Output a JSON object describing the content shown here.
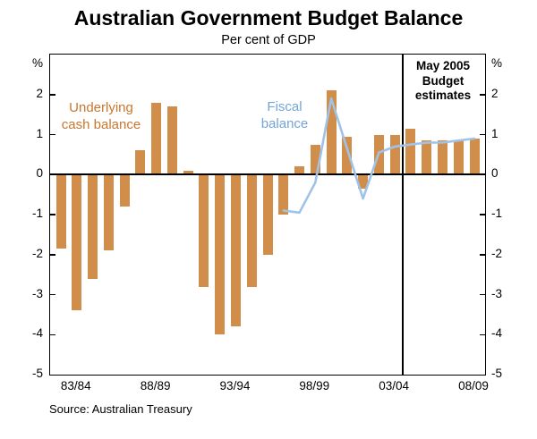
{
  "axis": {
    "unit": "%"
  },
  "annotations": {
    "underlying_line1": "Underlying",
    "underlying_line2": "cash balance",
    "fiscal_line1": "Fiscal",
    "fiscal_line2": "balance",
    "estimates_line1": "May 2005",
    "estimates_line2": "Budget",
    "estimates_line3": "estimates"
  },
  "colors": {
    "bar_series": "#D08E4A",
    "bar_series_text": "#C8772F",
    "line_series": "#9FC3E8",
    "line_series_text": "#73A5D8",
    "axis": "#000000"
  },
  "chart_data": {
    "type": "bar",
    "title": "Australian Government Budget Balance",
    "subtitle": "Per cent of GDP",
    "source": "Source: Australian Treasury",
    "ylabel": "%",
    "ylim": [
      -5,
      3
    ],
    "grid": false,
    "legend": "inline-annotations",
    "y_ticks": [
      2,
      1,
      0,
      -1,
      -2,
      -3,
      -4,
      -5
    ],
    "x_tick_labels": [
      "83/84",
      "88/89",
      "93/94",
      "98/99",
      "03/04",
      "08/09"
    ],
    "x_tick_indices": [
      1,
      6,
      11,
      16,
      21,
      26
    ],
    "estimates_divider_between": [
      "03/04",
      "04/05"
    ],
    "categories": [
      "82/83",
      "83/84",
      "84/85",
      "85/86",
      "86/87",
      "87/88",
      "88/89",
      "89/90",
      "90/91",
      "91/92",
      "92/93",
      "93/94",
      "94/95",
      "95/96",
      "96/97",
      "97/98",
      "98/99",
      "99/00",
      "00/01",
      "01/02",
      "02/03",
      "03/04",
      "04/05",
      "05/06",
      "06/07",
      "07/08",
      "08/09"
    ],
    "series": [
      {
        "name": "Underlying cash balance",
        "render": "bar",
        "color": "#D08E4A",
        "values": [
          -1.85,
          -3.4,
          -2.6,
          -1.9,
          -0.8,
          0.6,
          1.8,
          1.7,
          0.1,
          -2.8,
          -4.0,
          -3.8,
          -2.8,
          -2.0,
          -1.0,
          0.2,
          0.75,
          2.1,
          0.95,
          -0.35,
          1.0,
          1.0,
          1.15,
          0.85,
          0.85,
          0.85,
          0.9
        ]
      },
      {
        "name": "Fiscal balance",
        "render": "line",
        "color": "#9FC3E8",
        "values": [
          null,
          null,
          null,
          null,
          null,
          null,
          null,
          null,
          null,
          null,
          null,
          null,
          null,
          null,
          -0.9,
          -0.95,
          -0.2,
          1.9,
          0.65,
          -0.6,
          0.55,
          0.7,
          0.75,
          0.8,
          0.8,
          0.85,
          0.9
        ]
      }
    ]
  }
}
